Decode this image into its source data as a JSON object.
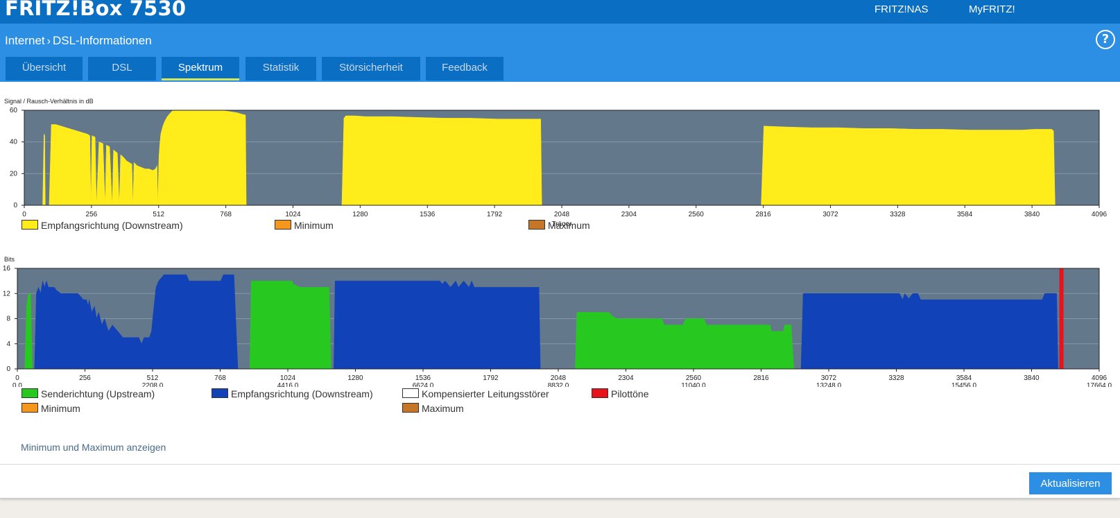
{
  "header": {
    "brand": "FRITZ!Box 7530",
    "links": [
      "FRITZ!NAS",
      "MyFRITZ!"
    ]
  },
  "breadcrumb": {
    "parent": "Internet",
    "separator": "›",
    "current": "DSL-Informationen"
  },
  "help_label": "?",
  "tabs": [
    {
      "label": "Übersicht",
      "active": false
    },
    {
      "label": "DSL",
      "active": false
    },
    {
      "label": "Spektrum",
      "active": true
    },
    {
      "label": "Statistik",
      "active": false
    },
    {
      "label": "Störsicherheit",
      "active": false
    },
    {
      "label": "Feedback",
      "active": false
    }
  ],
  "colors": {
    "downstream_snr": "#ffec1a",
    "upstream": "#27c921",
    "downstream_bits": "#1242b8",
    "pilot": "#e8121a",
    "minimum": "#f5971d",
    "maximum": "#c57626",
    "compensated": "#ffffff",
    "plot_bg": "#64788c",
    "grid": "#8496a8"
  },
  "chart_data": [
    {
      "type": "area",
      "ylabel": "Signal / Rausch-Verhältnis in dB",
      "xlabel": "Träger",
      "xlim": [
        0,
        4096
      ],
      "ylim": [
        0,
        60
      ],
      "xticks": [
        "0",
        "256",
        "512",
        "768",
        "1024",
        "1280",
        "1536",
        "1792",
        "2048",
        "2304",
        "2560",
        "2816",
        "3072",
        "3328",
        "3584",
        "3840",
        "4096"
      ],
      "yticks": [
        "0",
        "20",
        "40",
        "60"
      ],
      "series": [
        {
          "name": "Empfangsrichtung (Downstream)",
          "color": "#ffec1a",
          "segments": [
            [
              [
                70,
                0
              ],
              [
                75,
                45
              ],
              [
                78,
                44
              ],
              [
                80,
                0
              ]
            ],
            [
              [
                95,
                0
              ],
              [
                103,
                51
              ],
              [
                120,
                51
              ],
              [
                140,
                50
              ],
              [
                160,
                49
              ],
              [
                180,
                48
              ],
              [
                200,
                47
              ],
              [
                220,
                46
              ],
              [
                240,
                45
              ],
              [
                250,
                44
              ],
              [
                254,
                0
              ],
              [
                258,
                44
              ],
              [
                270,
                43
              ],
              [
                275,
                0
              ],
              [
                285,
                40
              ],
              [
                300,
                39
              ],
              [
                308,
                0
              ],
              [
                313,
                38
              ],
              [
                325,
                37
              ],
              [
                335,
                0
              ],
              [
                340,
                35
              ],
              [
                355,
                33
              ],
              [
                362,
                0
              ],
              [
                367,
                32
              ],
              [
                380,
                30
              ],
              [
                390,
                28
              ],
              [
                400,
                27
              ],
              [
                410,
                26
              ],
              [
                414,
                0
              ],
              [
                418,
                27
              ],
              [
                430,
                25
              ],
              [
                445,
                24
              ],
              [
                460,
                23
              ],
              [
                475,
                23
              ],
              [
                490,
                22
              ],
              [
                500,
                23
              ],
              [
                506,
                25
              ],
              [
                509,
                0
              ],
              [
                513,
                30
              ],
              [
                516,
                38
              ],
              [
                520,
                45
              ],
              [
                528,
                50
              ],
              [
                535,
                53
              ],
              [
                545,
                56
              ],
              [
                555,
                58
              ],
              [
                565,
                59.7
              ],
              [
                600,
                60
              ],
              [
                650,
                60
              ],
              [
                700,
                60
              ],
              [
                740,
                60
              ],
              [
                770,
                59.5
              ],
              [
                790,
                59
              ],
              [
                810,
                58.5
              ],
              [
                830,
                57.5
              ],
              [
                843,
                57
              ],
              [
                846,
                0
              ]
            ],
            [
              [
                1210,
                0
              ],
              [
                1218,
                55
              ],
              [
                1225,
                56.5
              ],
              [
                1260,
                56.5
              ],
              [
                1300,
                56
              ],
              [
                1400,
                56
              ],
              [
                1500,
                55.5
              ],
              [
                1600,
                55
              ],
              [
                1700,
                55
              ],
              [
                1800,
                54.5
              ],
              [
                1900,
                54.5
              ],
              [
                1968,
                54.5
              ],
              [
                1972,
                0
              ]
            ],
            [
              [
                2808,
                0
              ],
              [
                2818,
                50
              ],
              [
                2900,
                49.5
              ],
              [
                3000,
                49
              ],
              [
                3100,
                49
              ],
              [
                3200,
                48.5
              ],
              [
                3300,
                48.5
              ],
              [
                3400,
                48
              ],
              [
                3500,
                48
              ],
              [
                3600,
                47.5
              ],
              [
                3700,
                47.5
              ],
              [
                3800,
                47.5
              ],
              [
                3850,
                48
              ],
              [
                3915,
                48
              ],
              [
                3922,
                47
              ],
              [
                3928,
                0
              ]
            ]
          ]
        }
      ],
      "legend": [
        {
          "label": "Empfangsrichtung (Downstream)",
          "color": "#ffec1a"
        },
        {
          "label": "Minimum",
          "color": "#f5971d"
        },
        {
          "label": "Maximum",
          "color": "#c57626"
        }
      ]
    },
    {
      "type": "area",
      "ylabel": "Bits",
      "xlabel": "Träger / Frequenz in kHz",
      "xlim": [
        0,
        4096
      ],
      "ylim": [
        0,
        16
      ],
      "xticks": [
        "0",
        "256",
        "512",
        "768",
        "1024",
        "1280",
        "1536",
        "1792",
        "2048",
        "2304",
        "2560",
        "2816",
        "3072",
        "3328",
        "3584",
        "3840",
        "4096"
      ],
      "xticks_khz": [
        "0.0",
        "2208.0",
        "4416.0",
        "6624.0",
        "8832.0",
        "11040.0",
        "13248.0",
        "15456.0",
        "17664.0"
      ],
      "yticks": [
        "0",
        "4",
        "8",
        "12",
        "16"
      ],
      "series": [
        {
          "name": "Senderichtung (Upstream)",
          "color": "#27c921",
          "segments": [
            [
              [
                28,
                0
              ],
              [
                35,
                10
              ],
              [
                42,
                12
              ],
              [
                50,
                12
              ],
              [
                57,
                0
              ]
            ],
            [
              [
                880,
                0
              ],
              [
                885,
                14
              ],
              [
                1040,
                14
              ],
              [
                1045,
                13.5
              ],
              [
                1070,
                13
              ],
              [
                1180,
                13
              ],
              [
                1188,
                0
              ]
            ],
            [
              [
                2112,
                0
              ],
              [
                2118,
                9
              ],
              [
                2240,
                9
              ],
              [
                2250,
                8.5
              ],
              [
                2270,
                8
              ],
              [
                2440,
                8
              ],
              [
                2450,
                7
              ],
              [
                2520,
                7
              ],
              [
                2530,
                8
              ],
              [
                2600,
                8
              ],
              [
                2610,
                7
              ],
              [
                2850,
                7
              ],
              [
                2855,
                6
              ],
              [
                2900,
                6
              ],
              [
                2905,
                7
              ],
              [
                2930,
                7
              ],
              [
                2940,
                0
              ]
            ]
          ]
        },
        {
          "name": "Empfangsrichtung (Downstream)",
          "color": "#1242b8",
          "segments": [
            [
              [
                65,
                0
              ],
              [
                72,
                12
              ],
              [
                80,
                13
              ],
              [
                88,
                12
              ],
              [
                96,
                14
              ],
              [
                103,
                13
              ],
              [
                110,
                14
              ],
              [
                118,
                13
              ],
              [
                140,
                13
              ],
              [
                148,
                12.5
              ],
              [
                165,
                12
              ],
              [
                230,
                12
              ],
              [
                250,
                11
              ],
              [
                262,
                11
              ],
              [
                268,
                10
              ],
              [
                272,
                11
              ],
              [
                282,
                9
              ],
              [
                292,
                10
              ],
              [
                300,
                8
              ],
              [
                308,
                9
              ],
              [
                320,
                7
              ],
              [
                330,
                8
              ],
              [
                345,
                6
              ],
              [
                360,
                7
              ],
              [
                380,
                6
              ],
              [
                400,
                5
              ],
              [
                460,
                5
              ],
              [
                470,
                4
              ],
              [
                480,
                5
              ],
              [
                500,
                5
              ],
              [
                508,
                6
              ],
              [
                515,
                9
              ],
              [
                525,
                13
              ],
              [
                535,
                14
              ],
              [
                555,
                15
              ],
              [
                640,
                15
              ],
              [
                650,
                14
              ],
              [
                770,
                14
              ],
              [
                780,
                15
              ],
              [
                820,
                15
              ],
              [
                835,
                0
              ]
            ],
            [
              [
                1198,
                0
              ],
              [
                1203,
                14
              ],
              [
                1600,
                14
              ],
              [
                1608,
                13.5
              ],
              [
                1620,
                14
              ],
              [
                1640,
                13
              ],
              [
                1660,
                14
              ],
              [
                1670,
                13
              ],
              [
                1690,
                14
              ],
              [
                1700,
                13.5
              ],
              [
                1710,
                13
              ],
              [
                1720,
                14
              ],
              [
                1730,
                13
              ],
              [
                1975,
                13
              ],
              [
                1980,
                0
              ]
            ],
            [
              [
                2967,
                0
              ],
              [
                2975,
                12
              ],
              [
                3340,
                12
              ],
              [
                3352,
                11
              ],
              [
                3360,
                12
              ],
              [
                3375,
                11.2
              ],
              [
                3390,
                12
              ],
              [
                3410,
                12
              ],
              [
                3420,
                11
              ],
              [
                3880,
                11
              ],
              [
                3890,
                12
              ],
              [
                3935,
                12
              ],
              [
                3940,
                0
              ]
            ]
          ]
        }
      ],
      "pilot_tones": [
        3953
      ],
      "legend": [
        {
          "label": "Senderichtung (Upstream)",
          "color": "#27c921"
        },
        {
          "label": "Empfangsrichtung (Downstream)",
          "color": "#1242b8"
        },
        {
          "label": "Kompensierter Leitungsstörer",
          "color": "#ffffff"
        },
        {
          "label": "Pilottöne",
          "color": "#e8121a"
        },
        {
          "label": "Minimum",
          "color": "#f5971d"
        },
        {
          "label": "Maximum",
          "color": "#c57626"
        }
      ]
    }
  ],
  "toggle_minmax": "Minimum und Maximum anzeigen",
  "refresh_button": "Aktualisieren"
}
